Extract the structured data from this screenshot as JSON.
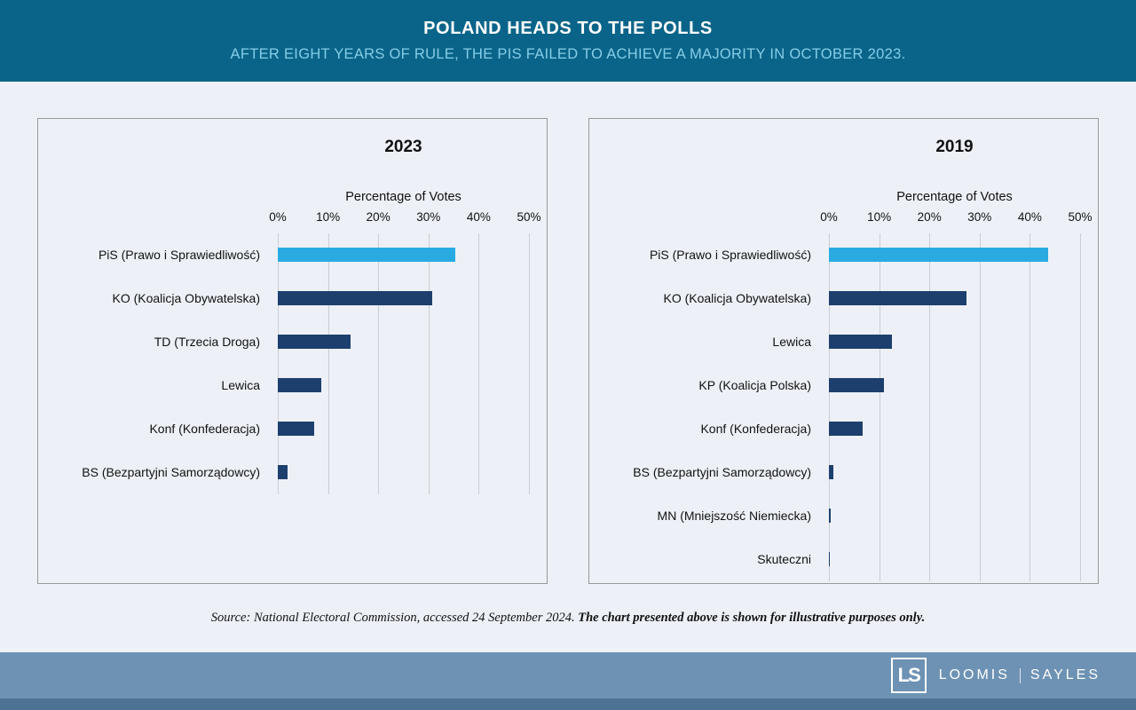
{
  "header": {
    "title": "POLAND HEADS TO THE POLLS",
    "subtitle": "AFTER EIGHT YEARS OF RULE, THE PIS FAILED TO ACHIEVE A MAJORITY IN OCTOBER 2023."
  },
  "chart_data": [
    {
      "type": "bar",
      "orientation": "horizontal",
      "title": "2023",
      "xlabel": "Percentage of Votes",
      "xlim": [
        0,
        50
      ],
      "grid": true,
      "ticks": [
        "0%",
        "10%",
        "20%",
        "30%",
        "40%",
        "50%"
      ],
      "tick_values": [
        0,
        10,
        20,
        30,
        40,
        50
      ],
      "categories": [
        "PiS (Prawo i Sprawiedliwość)",
        "KO (Koalicja Obywatelska)",
        "TD (Trzecia Droga)",
        "Lewica",
        "Konf (Konfederacja)",
        "BS (Bezpartyjni Samorządowcy)"
      ],
      "values": [
        35.4,
        30.7,
        14.4,
        8.6,
        7.2,
        1.9
      ],
      "bar_colors": [
        "#29abe2",
        "#1d3f6e",
        "#1d3f6e",
        "#1d3f6e",
        "#1d3f6e",
        "#1d3f6e"
      ]
    },
    {
      "type": "bar",
      "orientation": "horizontal",
      "title": "2019",
      "xlabel": "Percentage of Votes",
      "xlim": [
        0,
        50
      ],
      "grid": true,
      "ticks": [
        "0%",
        "10%",
        "20%",
        "30%",
        "40%",
        "50%"
      ],
      "tick_values": [
        0,
        10,
        20,
        30,
        40,
        50
      ],
      "categories": [
        "PiS (Prawo i Sprawiedliwość)",
        "KO (Koalicja Obywatelska)",
        "Lewica",
        "KP (Koalicja Polska)",
        "Konf (Konfederacja)",
        "BS (Bezpartyjni Samorządowcy)",
        "MN (Mniejszość Niemiecka)",
        "Skuteczni"
      ],
      "values": [
        43.6,
        27.4,
        12.6,
        11.0,
        6.8,
        0.8,
        0.3,
        0.2
      ],
      "bar_colors": [
        "#29abe2",
        "#1d3f6e",
        "#1d3f6e",
        "#1d3f6e",
        "#1d3f6e",
        "#1d3f6e",
        "#1d3f6e",
        "#1d3f6e"
      ]
    }
  ],
  "source": {
    "regular": "Source: National Electoral Commission, accessed 24 September 2024. ",
    "bold": "The chart presented above is shown for illustrative purposes only."
  },
  "footer": {
    "logo_text": "LS",
    "brand_left": "LOOMIS",
    "brand_right": "SAYLES"
  },
  "colors": {
    "banner_bg": "#0a6489",
    "subtitle_text": "#85cde6",
    "highlight_bar": "#29abe2",
    "default_bar": "#1d3f6e",
    "page_bg": "#edf1f7",
    "footer_band": "#6d92b4",
    "footer_strip": "#4c7392"
  }
}
